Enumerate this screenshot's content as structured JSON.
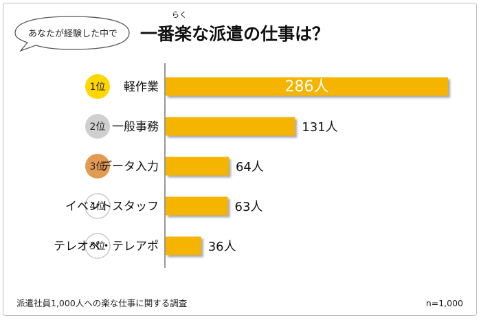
{
  "chart_data": {
    "type": "bar",
    "orientation": "horizontal",
    "question_bubble": "あなたが経験した中で",
    "title": "一番楽な派遣の仕事は？",
    "title_ruby": "らく",
    "ranks": [
      "1位",
      "2位",
      "3位",
      "4位",
      "5位"
    ],
    "categories": [
      "軽作業",
      "一般事務",
      "データ入力",
      "イベントスタッフ",
      "テレオペ・テレアポ"
    ],
    "values": [
      286,
      131,
      64,
      63,
      36
    ],
    "value_labels": [
      "286人",
      "131人",
      "64人",
      "63人",
      "36人"
    ],
    "unit": "人",
    "xlim": [
      0,
      286
    ],
    "grid": false,
    "source_note": "派遣社員1,000人への楽な仕事に関する調査",
    "sample_size": "n=1,000"
  },
  "colors": {
    "bar": "#f5b400",
    "bar_shadow": "#9a9a9a",
    "rank1": "#ffd700",
    "rank2": "#cfcfcf",
    "rank3": "#e39a52",
    "rank_other_fill": "#ffffff",
    "rank_other_stroke": "#c8c8c8",
    "axis": "#777777"
  }
}
